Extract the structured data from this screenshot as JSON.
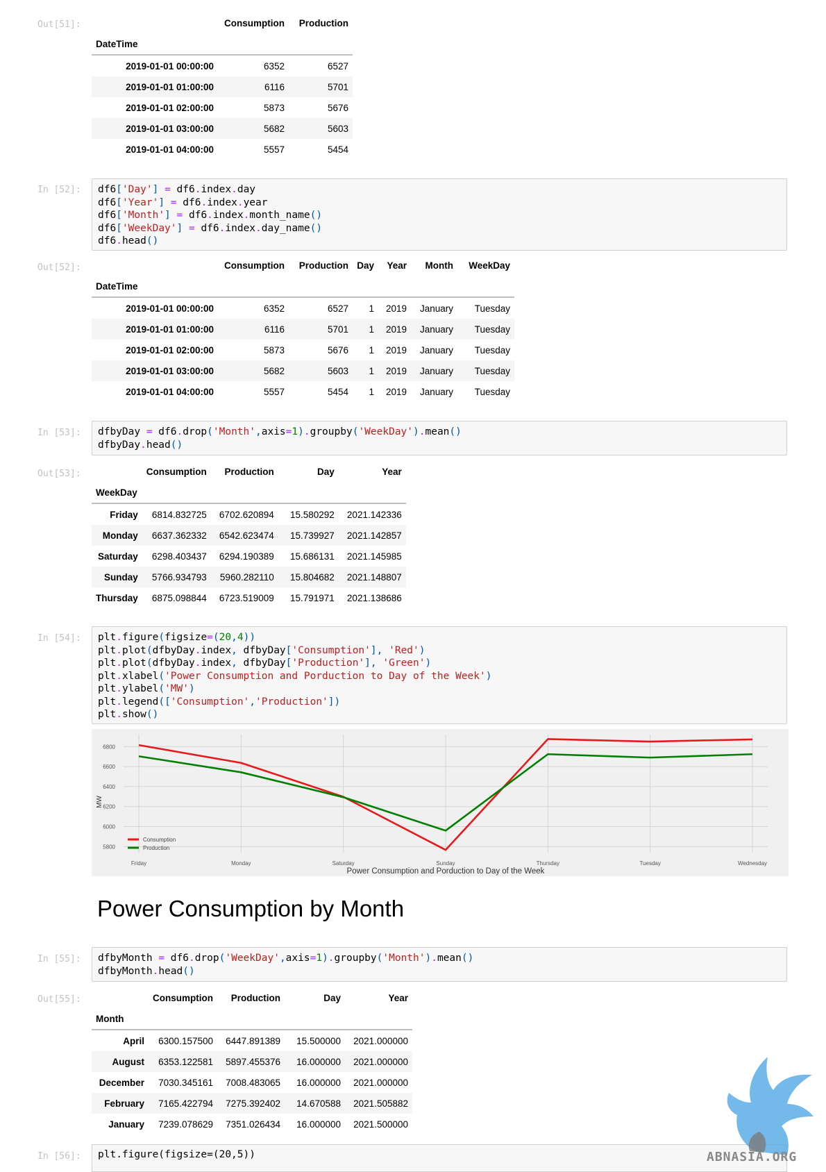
{
  "cells": {
    "out51": {
      "prompt": "Out[51]:",
      "columns": [
        "Consumption",
        "Production"
      ],
      "index_name": "DateTime",
      "rows": [
        [
          "2019-01-01 00:00:00",
          "6352",
          "6527"
        ],
        [
          "2019-01-01 01:00:00",
          "6116",
          "5701"
        ],
        [
          "2019-01-01 02:00:00",
          "5873",
          "5676"
        ],
        [
          "2019-01-01 03:00:00",
          "5682",
          "5603"
        ],
        [
          "2019-01-01 04:00:00",
          "5557",
          "5454"
        ]
      ]
    },
    "in52": {
      "prompt": "In [52]:",
      "lines": [
        "df6['Day'] = df6.index.day",
        "df6['Year'] = df6.index.year",
        "df6['Month'] = df6.index.month_name()",
        "df6['WeekDay'] = df6.index.day_name()",
        "df6.head()"
      ]
    },
    "out52": {
      "prompt": "Out[52]:",
      "columns": [
        "Consumption",
        "Production",
        "Day",
        "Year",
        "Month",
        "WeekDay"
      ],
      "index_name": "DateTime",
      "rows": [
        [
          "2019-01-01 00:00:00",
          "6352",
          "6527",
          "1",
          "2019",
          "January",
          "Tuesday"
        ],
        [
          "2019-01-01 01:00:00",
          "6116",
          "5701",
          "1",
          "2019",
          "January",
          "Tuesday"
        ],
        [
          "2019-01-01 02:00:00",
          "5873",
          "5676",
          "1",
          "2019",
          "January",
          "Tuesday"
        ],
        [
          "2019-01-01 03:00:00",
          "5682",
          "5603",
          "1",
          "2019",
          "January",
          "Tuesday"
        ],
        [
          "2019-01-01 04:00:00",
          "5557",
          "5454",
          "1",
          "2019",
          "January",
          "Tuesday"
        ]
      ]
    },
    "in53": {
      "prompt": "In [53]:",
      "lines": [
        "dfbyDay = df6.drop('Month',axis=1).groupby('WeekDay').mean()",
        "dfbyDay.head()"
      ]
    },
    "out53": {
      "prompt": "Out[53]:",
      "columns": [
        "Consumption",
        "Production",
        "Day",
        "Year"
      ],
      "index_name": "WeekDay",
      "rows": [
        [
          "Friday",
          "6814.832725",
          "6702.620894",
          "15.580292",
          "2021.142336"
        ],
        [
          "Monday",
          "6637.362332",
          "6542.623474",
          "15.739927",
          "2021.142857"
        ],
        [
          "Saturday",
          "6298.403437",
          "6294.190389",
          "15.686131",
          "2021.145985"
        ],
        [
          "Sunday",
          "5766.934793",
          "5960.282110",
          "15.804682",
          "2021.148807"
        ],
        [
          "Thursday",
          "6875.098844",
          "6723.519009",
          "15.791971",
          "2021.138686"
        ]
      ]
    },
    "in54": {
      "prompt": "In [54]:",
      "lines": [
        "plt.figure(figsize=(20,4))",
        "plt.plot(dfbyDay.index, dfbyDay['Consumption'], 'Red')",
        "plt.plot(dfbyDay.index, dfbyDay['Production'], 'Green')",
        "plt.xlabel('Power Consumption and Porduction to Day of the Week')",
        "plt.ylabel('MW')",
        "plt.legend(['Consumption','Production'])",
        "plt.show()"
      ]
    },
    "section_heading": "Power Consumption by Month",
    "in55": {
      "prompt": "In [55]:",
      "lines": [
        "dfbyMonth = df6.drop('WeekDay',axis=1).groupby('Month').mean()",
        "dfbyMonth.head()"
      ]
    },
    "out55": {
      "prompt": "Out[55]:",
      "columns": [
        "Consumption",
        "Production",
        "Day",
        "Year"
      ],
      "index_name": "Month",
      "rows": [
        [
          "April",
          "6300.157500",
          "6447.891389",
          "15.500000",
          "2021.000000"
        ],
        [
          "August",
          "6353.122581",
          "5897.455376",
          "16.000000",
          "2021.000000"
        ],
        [
          "December",
          "7030.345161",
          "7008.483065",
          "16.000000",
          "2021.000000"
        ],
        [
          "February",
          "7165.422794",
          "7275.392402",
          "14.670588",
          "2021.505882"
        ],
        [
          "January",
          "7239.078629",
          "7351.026434",
          "16.000000",
          "2021.500000"
        ]
      ]
    },
    "in56": {
      "prompt": "In [56]:",
      "line": "plt.figure(figsize=(20,5))"
    }
  },
  "chart_data": {
    "type": "line",
    "categories": [
      "Friday",
      "Monday",
      "Saturday",
      "Sunday",
      "Thursday",
      "Tuesday",
      "Wednesday"
    ],
    "series": [
      {
        "name": "Consumption",
        "color": "#e41a1c",
        "values": [
          6815,
          6637,
          6298,
          5767,
          6875,
          6850,
          6872
        ]
      },
      {
        "name": "Production",
        "color": "#008000",
        "values": [
          6703,
          6543,
          6294,
          5960,
          6724,
          6690,
          6724
        ]
      }
    ],
    "y_ticks": [
      5800,
      6000,
      6200,
      6400,
      6600,
      6800
    ],
    "ylim": [
      5740,
      6920
    ],
    "xlabel": "Power Consumption and Porduction to Day of the Week",
    "ylabel": "MW",
    "grid": true,
    "legend_position": "bottom-left"
  },
  "watermark": {
    "text": "ABNASIA.ORG",
    "color": "#4aa3df"
  }
}
